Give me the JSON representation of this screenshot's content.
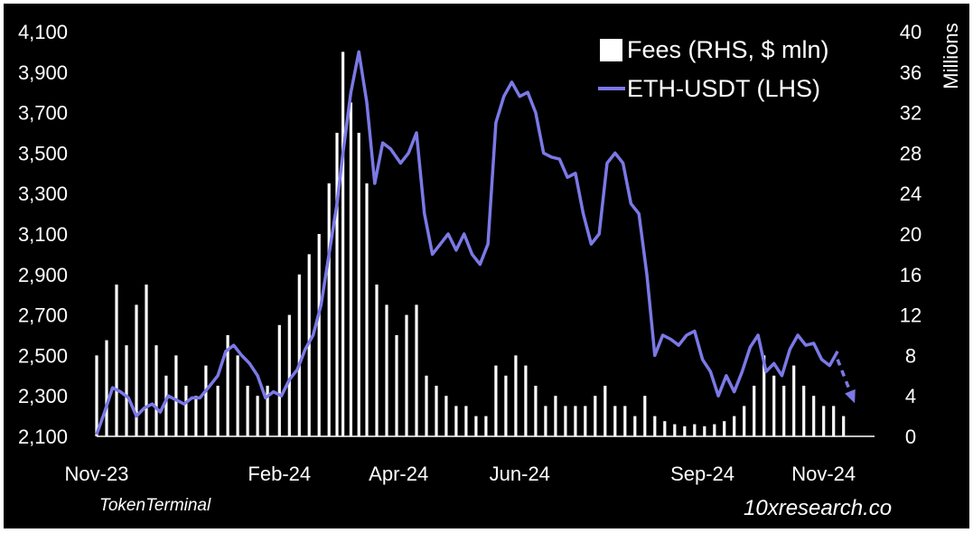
{
  "chart_data": {
    "type": "bar+line",
    "y_left": {
      "ticks": [
        "2,100",
        "2,300",
        "2,500",
        "2,700",
        "2,900",
        "3,100",
        "3,300",
        "3,500",
        "3,700",
        "3,900",
        "4,100"
      ],
      "range": [
        2100,
        4100
      ]
    },
    "y_right": {
      "label": "Millions",
      "ticks": [
        "0",
        "4",
        "8",
        "12",
        "16",
        "20",
        "24",
        "28",
        "32",
        "36",
        "40"
      ],
      "range": [
        0,
        40
      ]
    },
    "x_ticks": [
      "Nov-23",
      "Feb-24",
      "Apr-24",
      "Jun-24",
      "Sep-24",
      "Nov-24"
    ],
    "x_range": [
      "2023-11-01",
      "2024-11-01"
    ],
    "x_tick_dates": [
      "2023-11-01",
      "2024-02-01",
      "2024-04-01",
      "2024-06-01",
      "2024-09-01",
      "2024-11-01"
    ],
    "series": [
      {
        "name": "Fees (RHS, $ mln)",
        "type": "bar",
        "axis": "right",
        "color": "#ffffff",
        "points": [
          [
            "2023-11-01",
            8
          ],
          [
            "2023-11-06",
            9.5
          ],
          [
            "2023-11-11",
            15
          ],
          [
            "2023-11-16",
            9
          ],
          [
            "2023-11-21",
            13
          ],
          [
            "2023-11-26",
            15
          ],
          [
            "2023-12-01",
            9
          ],
          [
            "2023-12-06",
            6
          ],
          [
            "2023-12-11",
            8
          ],
          [
            "2023-12-16",
            5
          ],
          [
            "2023-12-21",
            4
          ],
          [
            "2023-12-26",
            7
          ],
          [
            "2024-01-01",
            5
          ],
          [
            "2024-01-06",
            10
          ],
          [
            "2024-01-11",
            8
          ],
          [
            "2024-01-16",
            5
          ],
          [
            "2024-01-21",
            4
          ],
          [
            "2024-01-26",
            5
          ],
          [
            "2024-02-01",
            11
          ],
          [
            "2024-02-06",
            12
          ],
          [
            "2024-02-11",
            16
          ],
          [
            "2024-02-16",
            18
          ],
          [
            "2024-02-21",
            20
          ],
          [
            "2024-02-26",
            25
          ],
          [
            "2024-03-01",
            30
          ],
          [
            "2024-03-04",
            38
          ],
          [
            "2024-03-08",
            33
          ],
          [
            "2024-03-12",
            30
          ],
          [
            "2024-03-16",
            25
          ],
          [
            "2024-03-21",
            15
          ],
          [
            "2024-03-26",
            13
          ],
          [
            "2024-03-31",
            10
          ],
          [
            "2024-04-05",
            12
          ],
          [
            "2024-04-10",
            13
          ],
          [
            "2024-04-15",
            6
          ],
          [
            "2024-04-20",
            5
          ],
          [
            "2024-04-25",
            4
          ],
          [
            "2024-04-30",
            3
          ],
          [
            "2024-05-05",
            3
          ],
          [
            "2024-05-10",
            2
          ],
          [
            "2024-05-15",
            2
          ],
          [
            "2024-05-20",
            7
          ],
          [
            "2024-05-25",
            6
          ],
          [
            "2024-05-30",
            8
          ],
          [
            "2024-06-04",
            7
          ],
          [
            "2024-06-09",
            5
          ],
          [
            "2024-06-14",
            3
          ],
          [
            "2024-06-19",
            4
          ],
          [
            "2024-06-24",
            3
          ],
          [
            "2024-06-29",
            3
          ],
          [
            "2024-07-04",
            3
          ],
          [
            "2024-07-09",
            4
          ],
          [
            "2024-07-14",
            5
          ],
          [
            "2024-07-19",
            3
          ],
          [
            "2024-07-24",
            3
          ],
          [
            "2024-07-29",
            2
          ],
          [
            "2024-08-03",
            4
          ],
          [
            "2024-08-08",
            2
          ],
          [
            "2024-08-13",
            1.5
          ],
          [
            "2024-08-18",
            1.2
          ],
          [
            "2024-08-23",
            1
          ],
          [
            "2024-08-28",
            1.2
          ],
          [
            "2024-09-02",
            1
          ],
          [
            "2024-09-07",
            1.2
          ],
          [
            "2024-09-12",
            1.5
          ],
          [
            "2024-09-17",
            2
          ],
          [
            "2024-09-22",
            3
          ],
          [
            "2024-09-27",
            5
          ],
          [
            "2024-10-02",
            8
          ],
          [
            "2024-10-07",
            6
          ],
          [
            "2024-10-12",
            5
          ],
          [
            "2024-10-17",
            7
          ],
          [
            "2024-10-22",
            5
          ],
          [
            "2024-10-27",
            4
          ],
          [
            "2024-11-01",
            3
          ],
          [
            "2024-11-06",
            3
          ],
          [
            "2024-11-11",
            2
          ]
        ]
      },
      {
        "name": "ETH-USDT (LHS)",
        "type": "line",
        "axis": "left",
        "color": "#7b79e6",
        "points": [
          [
            "2023-11-01",
            2110
          ],
          [
            "2023-11-05",
            2220
          ],
          [
            "2023-11-09",
            2340
          ],
          [
            "2023-11-13",
            2320
          ],
          [
            "2023-11-17",
            2290
          ],
          [
            "2023-11-21",
            2200
          ],
          [
            "2023-11-25",
            2240
          ],
          [
            "2023-11-29",
            2260
          ],
          [
            "2023-12-03",
            2220
          ],
          [
            "2023-12-07",
            2300
          ],
          [
            "2023-12-11",
            2280
          ],
          [
            "2023-12-15",
            2260
          ],
          [
            "2023-12-19",
            2290
          ],
          [
            "2023-12-23",
            2290
          ],
          [
            "2023-12-28",
            2350
          ],
          [
            "2024-01-01",
            2400
          ],
          [
            "2024-01-05",
            2520
          ],
          [
            "2024-01-09",
            2550
          ],
          [
            "2024-01-13",
            2500
          ],
          [
            "2024-01-17",
            2460
          ],
          [
            "2024-01-21",
            2400
          ],
          [
            "2024-01-25",
            2290
          ],
          [
            "2024-01-29",
            2320
          ],
          [
            "2024-02-02",
            2300
          ],
          [
            "2024-02-06",
            2380
          ],
          [
            "2024-02-10",
            2430
          ],
          [
            "2024-02-14",
            2530
          ],
          [
            "2024-02-18",
            2600
          ],
          [
            "2024-02-22",
            2750
          ],
          [
            "2024-02-26",
            3000
          ],
          [
            "2024-03-01",
            3250
          ],
          [
            "2024-03-04",
            3500
          ],
          [
            "2024-03-08",
            3800
          ],
          [
            "2024-03-12",
            4000
          ],
          [
            "2024-03-16",
            3750
          ],
          [
            "2024-03-20",
            3350
          ],
          [
            "2024-03-24",
            3550
          ],
          [
            "2024-03-28",
            3520
          ],
          [
            "2024-04-02",
            3450
          ],
          [
            "2024-04-06",
            3500
          ],
          [
            "2024-04-10",
            3600
          ],
          [
            "2024-04-14",
            3200
          ],
          [
            "2024-04-18",
            3000
          ],
          [
            "2024-04-22",
            3050
          ],
          [
            "2024-04-26",
            3100
          ],
          [
            "2024-04-30",
            3020
          ],
          [
            "2024-05-04",
            3100
          ],
          [
            "2024-05-08",
            3000
          ],
          [
            "2024-05-12",
            2950
          ],
          [
            "2024-05-16",
            3050
          ],
          [
            "2024-05-20",
            3650
          ],
          [
            "2024-05-24",
            3780
          ],
          [
            "2024-05-28",
            3850
          ],
          [
            "2024-06-01",
            3780
          ],
          [
            "2024-06-05",
            3800
          ],
          [
            "2024-06-09",
            3700
          ],
          [
            "2024-06-13",
            3500
          ],
          [
            "2024-06-17",
            3480
          ],
          [
            "2024-06-21",
            3470
          ],
          [
            "2024-06-25",
            3380
          ],
          [
            "2024-06-29",
            3400
          ],
          [
            "2024-07-03",
            3200
          ],
          [
            "2024-07-07",
            3050
          ],
          [
            "2024-07-11",
            3100
          ],
          [
            "2024-07-15",
            3450
          ],
          [
            "2024-07-19",
            3500
          ],
          [
            "2024-07-23",
            3450
          ],
          [
            "2024-07-27",
            3250
          ],
          [
            "2024-07-31",
            3200
          ],
          [
            "2024-08-04",
            2900
          ],
          [
            "2024-08-08",
            2500
          ],
          [
            "2024-08-12",
            2600
          ],
          [
            "2024-08-16",
            2580
          ],
          [
            "2024-08-20",
            2550
          ],
          [
            "2024-08-24",
            2600
          ],
          [
            "2024-08-28",
            2620
          ],
          [
            "2024-09-01",
            2480
          ],
          [
            "2024-09-05",
            2420
          ],
          [
            "2024-09-09",
            2300
          ],
          [
            "2024-09-13",
            2400
          ],
          [
            "2024-09-17",
            2320
          ],
          [
            "2024-09-21",
            2420
          ],
          [
            "2024-09-25",
            2540
          ],
          [
            "2024-09-29",
            2600
          ],
          [
            "2024-10-03",
            2420
          ],
          [
            "2024-10-07",
            2460
          ],
          [
            "2024-10-11",
            2400
          ],
          [
            "2024-10-15",
            2530
          ],
          [
            "2024-10-19",
            2600
          ],
          [
            "2024-10-23",
            2550
          ],
          [
            "2024-10-27",
            2560
          ],
          [
            "2024-10-31",
            2480
          ],
          [
            "2024-11-04",
            2450
          ],
          [
            "2024-11-08",
            2520
          ]
        ]
      }
    ],
    "annotations": [
      {
        "type": "dashed-arrow",
        "color": "#7b79e6",
        "from": [
          "2024-11-08",
          2480
        ],
        "to": [
          "2024-11-16",
          2280
        ]
      }
    ],
    "grid": false,
    "legend": "top-right"
  },
  "source_label": "TokenTerminal",
  "brand_label": "10xresearch.co"
}
